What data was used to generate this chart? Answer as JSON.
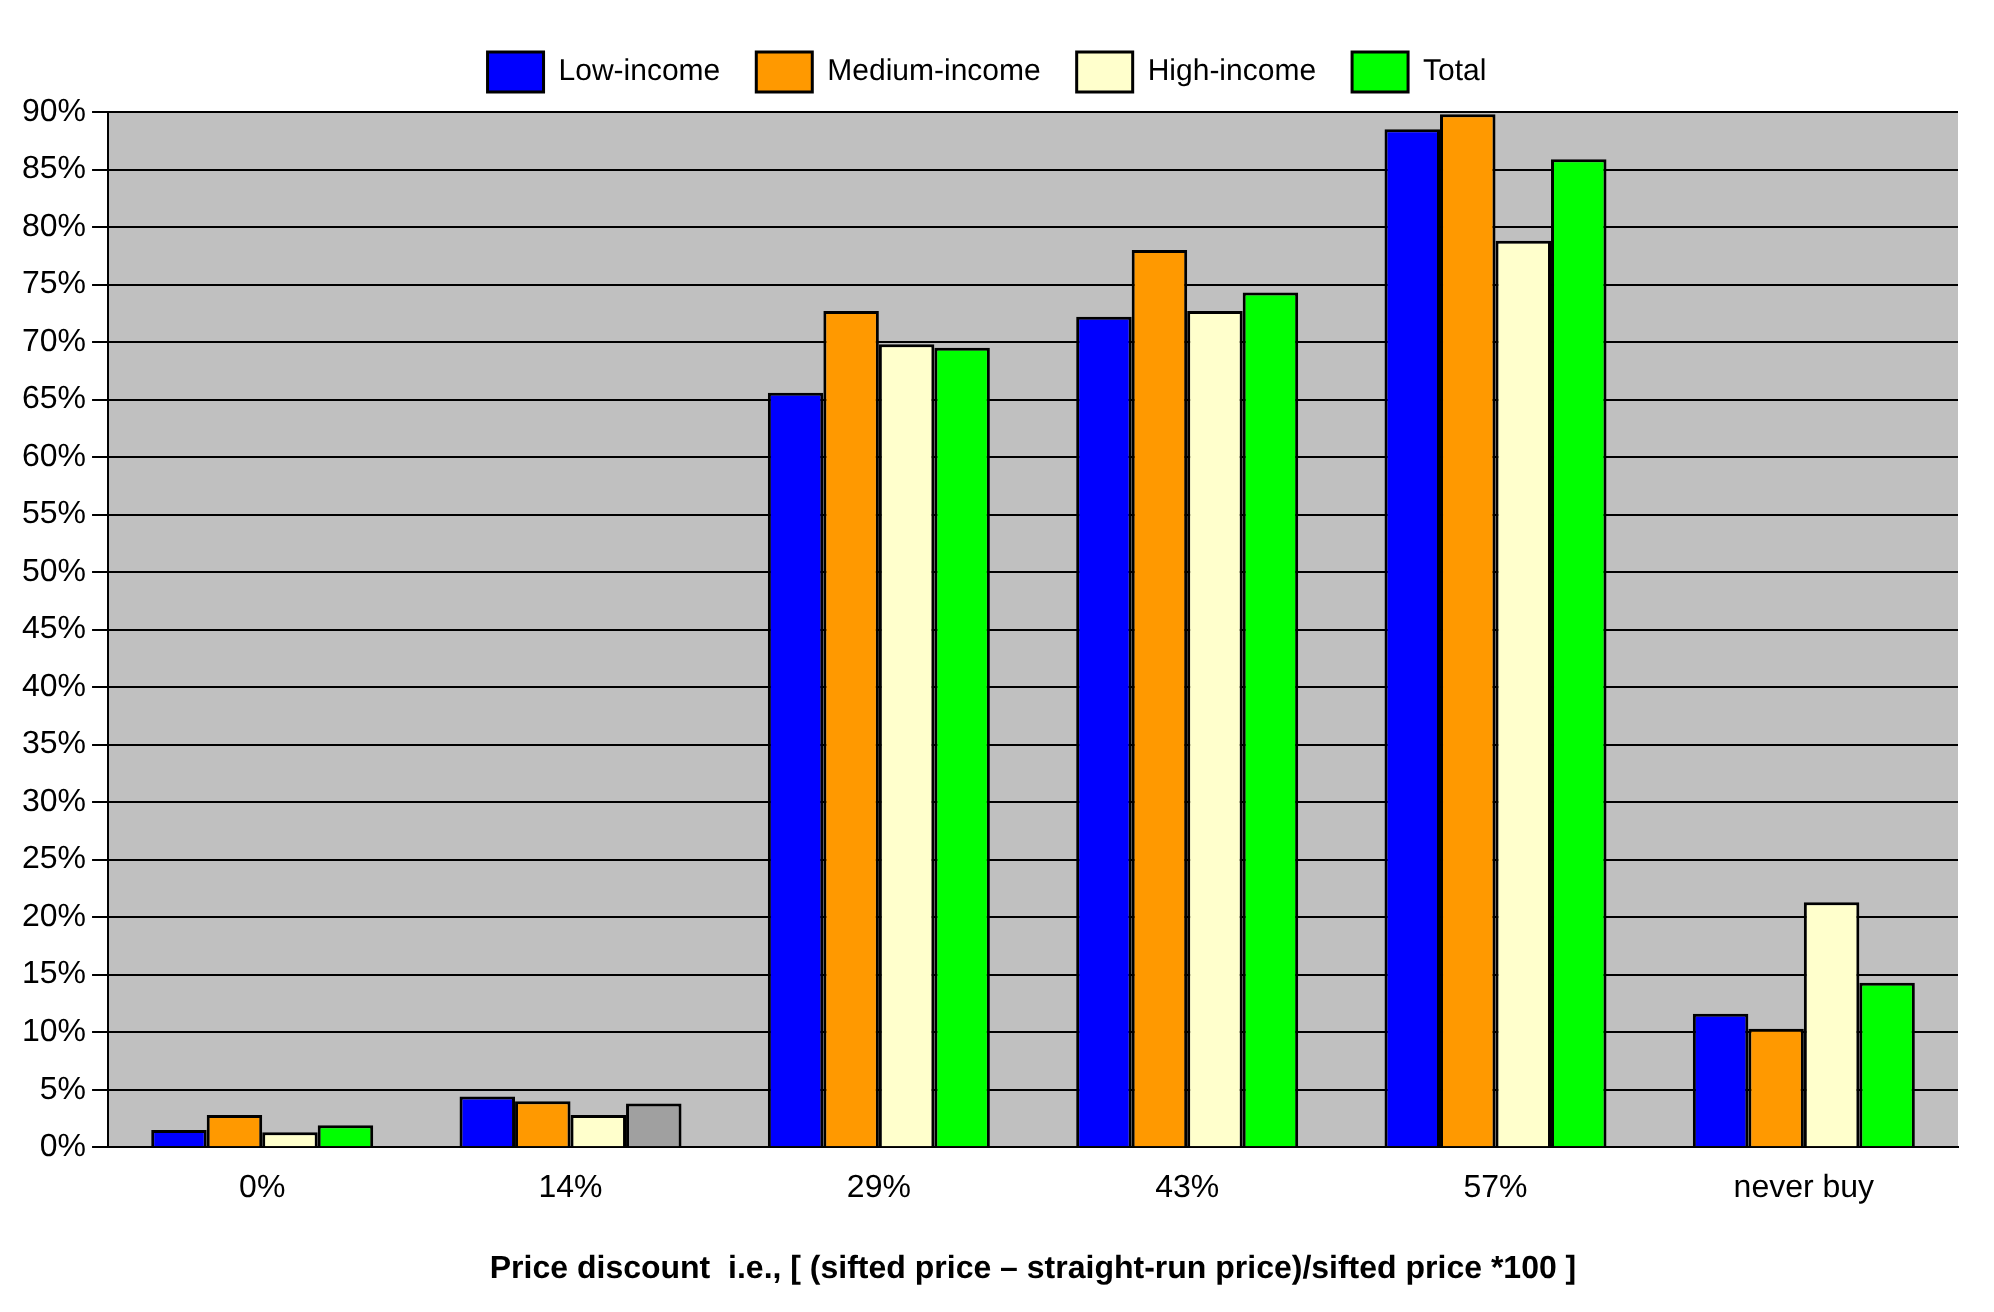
{
  "chart_data": {
    "type": "bar",
    "xlabel": "Price discount  i.e., [ (sifted price – straight-run price)/sifted price *100 ]",
    "categories": [
      "0%",
      "14%",
      "29%",
      "43%",
      "57%",
      "never buy"
    ],
    "series": [
      {
        "name": "Low-income",
        "color": "#0000ff",
        "values": [
          1.5,
          4.4,
          65.6,
          72.2,
          88.5,
          11.6
        ]
      },
      {
        "name": "Medium-income",
        "color": "#ff9900",
        "values": [
          2.8,
          4.0,
          72.7,
          78.0,
          89.8,
          10.3
        ]
      },
      {
        "name": "High-income",
        "color": "#ffffcc",
        "values": [
          1.3,
          2.8,
          69.8,
          72.7,
          78.8,
          21.3
        ]
      },
      {
        "name": "Total",
        "color": "#00ff00",
        "colors": [
          "#00ff00",
          "#a0a0a0",
          "#00ff00",
          "#00ff00",
          "#00ff00",
          "#00ff00"
        ],
        "values": [
          1.9,
          3.8,
          69.5,
          74.3,
          85.9,
          14.3
        ]
      }
    ],
    "ylim": [
      0,
      90
    ],
    "yticks": [
      {
        "value": 0,
        "label": "0%"
      },
      {
        "value": 5,
        "label": "5%"
      },
      {
        "value": 10,
        "label": "10%"
      },
      {
        "value": 15,
        "label": "15%"
      },
      {
        "value": 20,
        "label": "20%"
      },
      {
        "value": 25,
        "label": "25%"
      },
      {
        "value": 30,
        "label": "30%"
      },
      {
        "value": 35,
        "label": "35%"
      },
      {
        "value": 40,
        "label": "40%"
      },
      {
        "value": 45,
        "label": "45%"
      },
      {
        "value": 50,
        "label": "50%"
      },
      {
        "value": 55,
        "label": "55%"
      },
      {
        "value": 60,
        "label": "60%"
      },
      {
        "value": 65,
        "label": "65%"
      },
      {
        "value": 70,
        "label": "70%"
      },
      {
        "value": 75,
        "label": "75%"
      },
      {
        "value": 80,
        "label": "80%"
      },
      {
        "value": 85,
        "label": "85%"
      },
      {
        "value": 90,
        "label": "90%"
      }
    ],
    "grid": "y",
    "legend": "top"
  }
}
